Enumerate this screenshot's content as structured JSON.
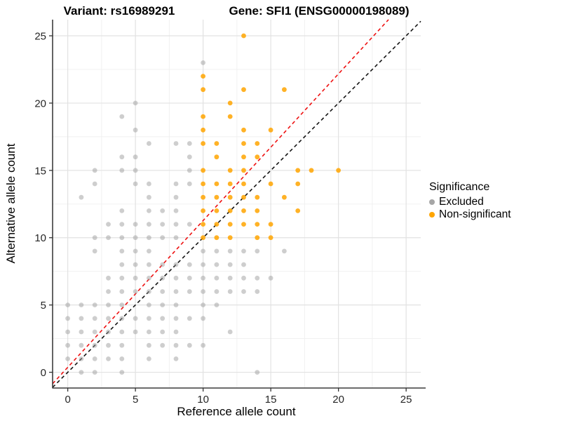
{
  "header": {
    "title_left": "Variant: rs16989291",
    "title_right": "Gene: SFI1 (ENSG00000198089)"
  },
  "chart_data": {
    "type": "scatter",
    "xlabel": "Reference allele count",
    "ylabel": "Alternative allele count",
    "xlim": [
      -1.12,
      26.08
    ],
    "ylim": [
      -1.17,
      26.2
    ],
    "x_ticks": [
      0,
      5,
      10,
      15,
      20,
      25
    ],
    "y_ticks": [
      0,
      5,
      10,
      15,
      20,
      25
    ],
    "x_minor": [
      2.5,
      7.5,
      12.5,
      17.5,
      22.5
    ],
    "y_minor": [
      2.5,
      7.5,
      12.5,
      17.5,
      22.5
    ],
    "grid": true,
    "legend": {
      "title": "Significance",
      "position": "right",
      "entries": [
        {
          "label": "Excluded",
          "color": "#A6A6A6"
        },
        {
          "label": "Non-significant",
          "color": "#FFA500"
        }
      ]
    },
    "series": [
      {
        "name": "Excluded",
        "color": "#9E9E9E",
        "opacity": 0.5,
        "points": [
          [
            1,
            0
          ],
          [
            2,
            0
          ],
          [
            4,
            0
          ],
          [
            14,
            0
          ],
          [
            0,
            1
          ],
          [
            1,
            1
          ],
          [
            2,
            1
          ],
          [
            3,
            1
          ],
          [
            4,
            1
          ],
          [
            6,
            1
          ],
          [
            8,
            1
          ],
          [
            0,
            2
          ],
          [
            1,
            2
          ],
          [
            2,
            2
          ],
          [
            3,
            2
          ],
          [
            4,
            2
          ],
          [
            6,
            2
          ],
          [
            7,
            2
          ],
          [
            8,
            2
          ],
          [
            9,
            2
          ],
          [
            10,
            2
          ],
          [
            0,
            3
          ],
          [
            1,
            3
          ],
          [
            2,
            3
          ],
          [
            3,
            3
          ],
          [
            4,
            3
          ],
          [
            5,
            3
          ],
          [
            6,
            3
          ],
          [
            7,
            3
          ],
          [
            8,
            3
          ],
          [
            12,
            3
          ],
          [
            0,
            4
          ],
          [
            1,
            4
          ],
          [
            2,
            4
          ],
          [
            3,
            4
          ],
          [
            4,
            4
          ],
          [
            5,
            4
          ],
          [
            6,
            4
          ],
          [
            7,
            4
          ],
          [
            8,
            4
          ],
          [
            9,
            4
          ],
          [
            10,
            4
          ],
          [
            0,
            5
          ],
          [
            1,
            5
          ],
          [
            2,
            5
          ],
          [
            3,
            5
          ],
          [
            4,
            5
          ],
          [
            6,
            5
          ],
          [
            7,
            5
          ],
          [
            8,
            5
          ],
          [
            10,
            5
          ],
          [
            11,
            5
          ],
          [
            3,
            6
          ],
          [
            4,
            6
          ],
          [
            5,
            6
          ],
          [
            6,
            6
          ],
          [
            7,
            6
          ],
          [
            8,
            6
          ],
          [
            9,
            6
          ],
          [
            10,
            6
          ],
          [
            11,
            6
          ],
          [
            12,
            6
          ],
          [
            13,
            6
          ],
          [
            14,
            6
          ],
          [
            3,
            7
          ],
          [
            4,
            7
          ],
          [
            5,
            7
          ],
          [
            6,
            7
          ],
          [
            7,
            7
          ],
          [
            8,
            7
          ],
          [
            9,
            7
          ],
          [
            10,
            7
          ],
          [
            11,
            7
          ],
          [
            12,
            7
          ],
          [
            13,
            7
          ],
          [
            14,
            7
          ],
          [
            15,
            7
          ],
          [
            4,
            8
          ],
          [
            5,
            8
          ],
          [
            6,
            8
          ],
          [
            7,
            8
          ],
          [
            8,
            8
          ],
          [
            9,
            8
          ],
          [
            10,
            8
          ],
          [
            11,
            8
          ],
          [
            12,
            8
          ],
          [
            13,
            8
          ],
          [
            2,
            9
          ],
          [
            4,
            9
          ],
          [
            5,
            9
          ],
          [
            6,
            9
          ],
          [
            10,
            9
          ],
          [
            11,
            9
          ],
          [
            12,
            9
          ],
          [
            13,
            9
          ],
          [
            14,
            9
          ],
          [
            16,
            9
          ],
          [
            2,
            10
          ],
          [
            3,
            10
          ],
          [
            4,
            10
          ],
          [
            5,
            10
          ],
          [
            6,
            10
          ],
          [
            7,
            10
          ],
          [
            8,
            10
          ],
          [
            3,
            11
          ],
          [
            4,
            11
          ],
          [
            5,
            11
          ],
          [
            6,
            11
          ],
          [
            7,
            11
          ],
          [
            8,
            11
          ],
          [
            9,
            11
          ],
          [
            4,
            12
          ],
          [
            6,
            12
          ],
          [
            7,
            12
          ],
          [
            8,
            12
          ],
          [
            1,
            13
          ],
          [
            6,
            13
          ],
          [
            8,
            13
          ],
          [
            2,
            14
          ],
          [
            5,
            14
          ],
          [
            6,
            14
          ],
          [
            8,
            14
          ],
          [
            9,
            14
          ],
          [
            2,
            15
          ],
          [
            4,
            15
          ],
          [
            5,
            15
          ],
          [
            9,
            15
          ],
          [
            4,
            16
          ],
          [
            5,
            16
          ],
          [
            9,
            16
          ],
          [
            6,
            17
          ],
          [
            8,
            17
          ],
          [
            9,
            17
          ],
          [
            5,
            18
          ],
          [
            4,
            19
          ],
          [
            5,
            20
          ],
          [
            10,
            23
          ]
        ]
      },
      {
        "name": "Non-significant",
        "color": "#FFA500",
        "opacity": 0.85,
        "points": [
          [
            10,
            10
          ],
          [
            11,
            10
          ],
          [
            12,
            10
          ],
          [
            14,
            10
          ],
          [
            15,
            10
          ],
          [
            10,
            11
          ],
          [
            11,
            11
          ],
          [
            12,
            11
          ],
          [
            13,
            11
          ],
          [
            14,
            11
          ],
          [
            15,
            11
          ],
          [
            10,
            12
          ],
          [
            11,
            12
          ],
          [
            12,
            12
          ],
          [
            13,
            12
          ],
          [
            14,
            12
          ],
          [
            17,
            12
          ],
          [
            10,
            13
          ],
          [
            11,
            13
          ],
          [
            12,
            13
          ],
          [
            13,
            13
          ],
          [
            14,
            13
          ],
          [
            16,
            13
          ],
          [
            10,
            14
          ],
          [
            11,
            14
          ],
          [
            12,
            14
          ],
          [
            13,
            14
          ],
          [
            15,
            14
          ],
          [
            17,
            14
          ],
          [
            10,
            15
          ],
          [
            12,
            15
          ],
          [
            13,
            15
          ],
          [
            17,
            15
          ],
          [
            18,
            15
          ],
          [
            20,
            15
          ],
          [
            11,
            16
          ],
          [
            13,
            16
          ],
          [
            14,
            16
          ],
          [
            10,
            17
          ],
          [
            11,
            17
          ],
          [
            13,
            17
          ],
          [
            14,
            17
          ],
          [
            10,
            18
          ],
          [
            13,
            18
          ],
          [
            15,
            18
          ],
          [
            10,
            19
          ],
          [
            12,
            19
          ],
          [
            12,
            20
          ],
          [
            10,
            21
          ],
          [
            13,
            21
          ],
          [
            16,
            21
          ],
          [
            10,
            22
          ],
          [
            13,
            25
          ]
        ]
      }
    ],
    "lines": [
      {
        "name": "identity-line",
        "slope": 1,
        "intercept": 0,
        "color": "#141414",
        "style": "dashed"
      },
      {
        "name": "expected-ratio-line",
        "slope": 1.09,
        "intercept": 0.37,
        "color": "#EE1111",
        "style": "dashed"
      }
    ]
  }
}
